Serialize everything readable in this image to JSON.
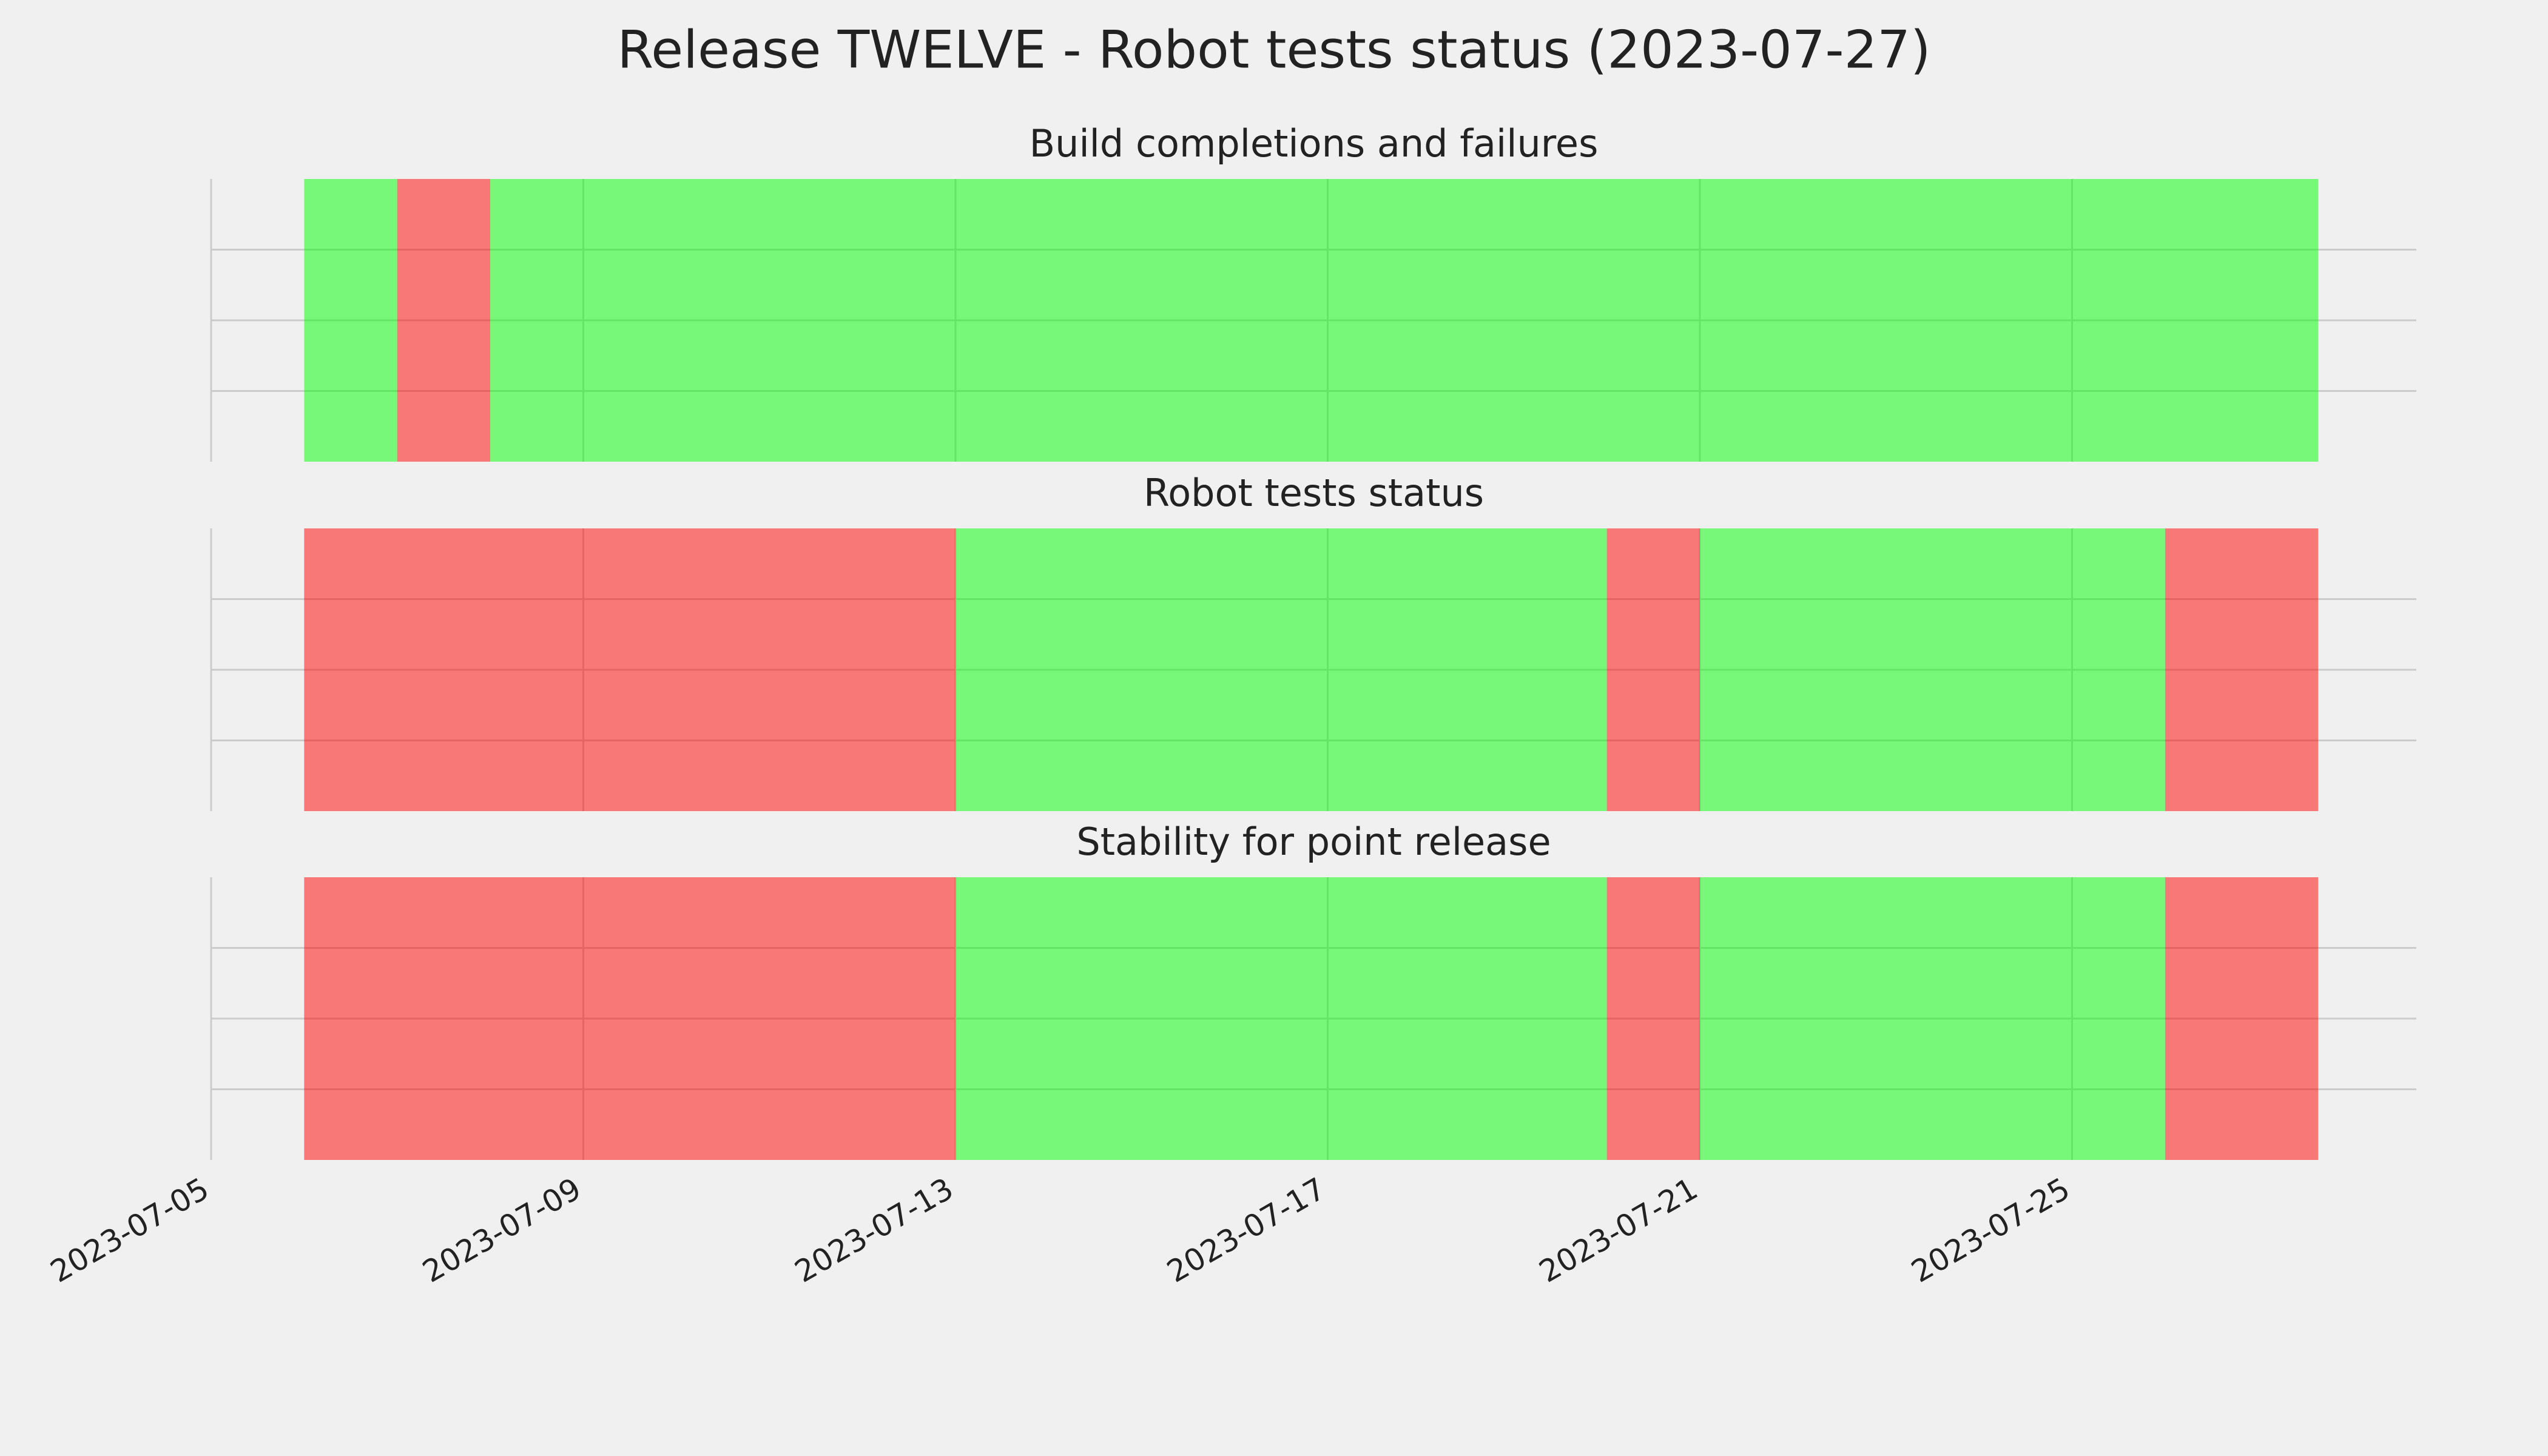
{
  "title": "Release TWELVE - Robot tests status (2023-07-27)",
  "chart_data": [
    {
      "type": "timeline",
      "title": "Build completions and failures",
      "x": [
        "2023-07-06",
        "2023-07-07",
        "2023-07-08"
      ],
      "x_end": [
        "2023-07-07",
        "2023-07-08",
        "2023-07-27T15:30"
      ],
      "colors": [
        "#00ff00",
        "#ff0000",
        "#00ff00"
      ],
      "alpha": 0.5,
      "xlim": [
        "2023-07-05",
        "2023-07-28T16:48"
      ],
      "ylim": [
        0,
        1
      ],
      "yticks": [
        0.25,
        0.5,
        0.75
      ],
      "grid": true
    },
    {
      "type": "timeline",
      "title": "Robot tests status",
      "x": [
        "2023-07-06",
        "2023-07-13",
        "2023-07-20",
        "2023-07-21",
        "2023-07-26"
      ],
      "x_end": [
        "2023-07-13",
        "2023-07-20",
        "2023-07-21",
        "2023-07-26",
        "2023-07-27T15:30"
      ],
      "colors": [
        "#ff0000",
        "#00ff00",
        "#ff0000",
        "#00ff00",
        "#ff0000"
      ],
      "alpha": 0.5,
      "xlim": [
        "2023-07-05",
        "2023-07-28T16:48"
      ],
      "ylim": [
        0,
        1
      ],
      "yticks": [
        0.25,
        0.5,
        0.75
      ],
      "grid": true
    },
    {
      "type": "timeline",
      "title": "Stability for point release",
      "x": [
        "2023-07-06",
        "2023-07-13",
        "2023-07-20",
        "2023-07-21",
        "2023-07-26"
      ],
      "x_end": [
        "2023-07-13",
        "2023-07-20",
        "2023-07-21",
        "2023-07-26",
        "2023-07-27T15:30"
      ],
      "colors": [
        "#ff0000",
        "#00ff00",
        "#ff0000",
        "#00ff00",
        "#ff0000"
      ],
      "alpha": 0.5,
      "xlim": [
        "2023-07-05",
        "2023-07-28T16:48"
      ],
      "ylim": [
        0,
        1
      ],
      "yticks": [
        0.25,
        0.5,
        0.75
      ],
      "grid": true,
      "xticks": [
        "2023-07-05",
        "2023-07-09",
        "2023-07-13",
        "2023-07-17",
        "2023-07-21",
        "2023-07-25"
      ]
    }
  ]
}
